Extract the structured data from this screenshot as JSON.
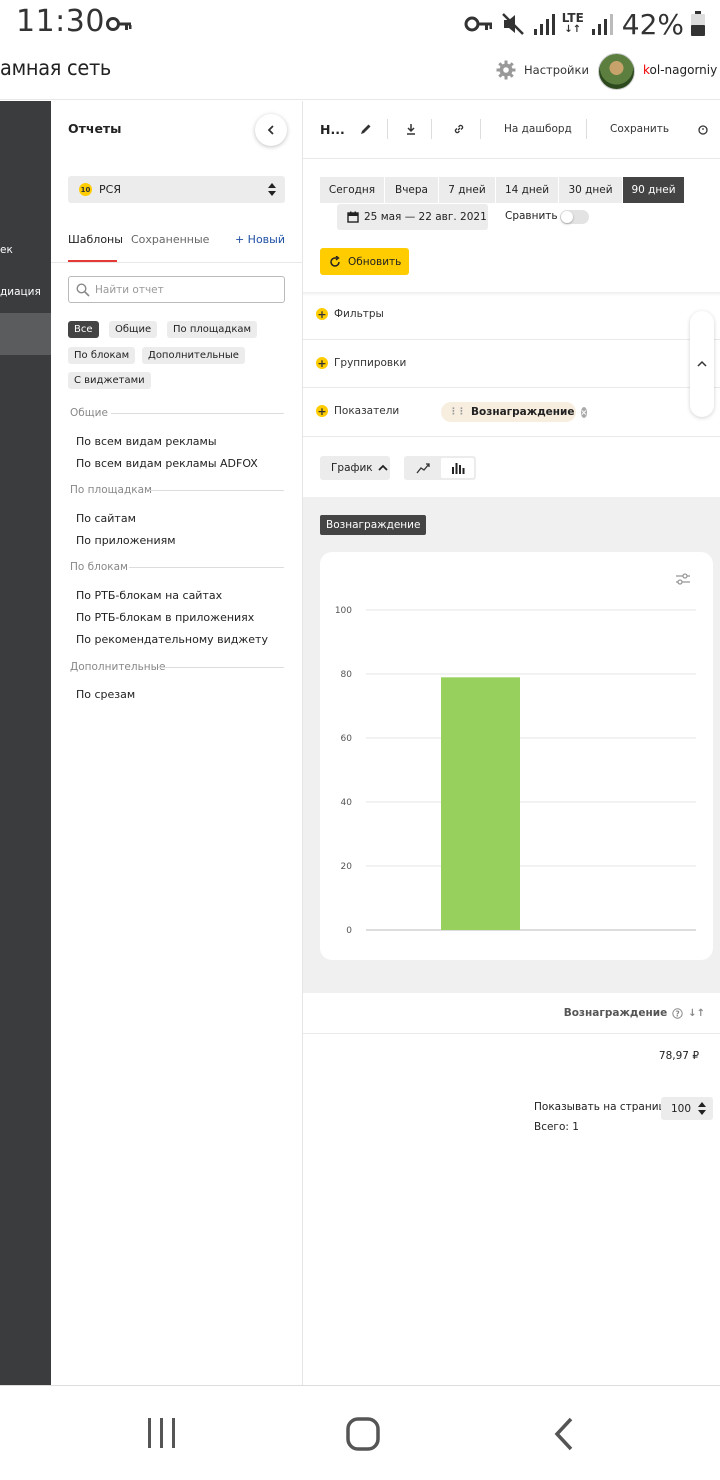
{
  "status_bar": {
    "time": "11:30",
    "network": "LTE",
    "battery": "42%"
  },
  "header": {
    "app_title": "амная сеть",
    "settings_label": "Настройки",
    "username_first": "k",
    "username_rest": "ol-nagorniy"
  },
  "left_nav": {
    "items": [
      "ек",
      "диация"
    ]
  },
  "sidebar": {
    "title": "Отчеты",
    "product_select": {
      "badge": "10",
      "value": "РСЯ"
    },
    "tabs": [
      "Шаблоны",
      "Сохраненные"
    ],
    "new_link": "+ Новый",
    "search_placeholder": "Найти отчет",
    "filter_chips": [
      "Все",
      "Общие",
      "По площадкам",
      "По блокам",
      "Дополнительные",
      "С виджетами"
    ],
    "groups": [
      {
        "title": "Общие",
        "items": [
          "По всем видам рекламы",
          "По всем видам рекламы ADFOX"
        ]
      },
      {
        "title": "По площадкам",
        "items": [
          "По сайтам",
          "По приложениям"
        ]
      },
      {
        "title": "По блокам",
        "items": [
          "По РТБ-блокам на сайтах",
          "По РТБ-блокам в приложениях",
          "По рекомендательному виджету"
        ]
      },
      {
        "title": "Дополнительные",
        "items": [
          "По срезам"
        ]
      }
    ]
  },
  "main": {
    "report_title": "Н...",
    "dashboard_link": "На дашборд",
    "save_link": "Сохранить",
    "periods": [
      "Сегодня",
      "Вчера",
      "7 дней",
      "14 дней",
      "30 дней",
      "90 дней"
    ],
    "active_period": "90 дней",
    "date_range": "25 мая — 22 авг. 2021",
    "compare_label": "Сравнить",
    "refresh_label": "Обновить",
    "filters_label": "Фильтры",
    "groupings_label": "Группировки",
    "metrics_label": "Показатели",
    "metric_chip": "Вознаграждение",
    "view_select": "График",
    "chart_metric_tag": "Вознаграждение",
    "table": {
      "column_header": "Вознаграждение",
      "value": "78,97 ₽",
      "per_page_label": "Показывать на странице",
      "per_page_value": "100",
      "total_label": "Всего: 1"
    }
  },
  "chart_data": {
    "type": "bar",
    "categories": [
      ""
    ],
    "values": [
      78.97
    ],
    "ylim": [
      0,
      100
    ],
    "yticks": [
      0,
      20,
      40,
      60,
      80,
      100
    ],
    "grid": true,
    "bar_color": "#97d05c"
  },
  "colors": {
    "accent_yellow": "#ffcc00",
    "nav_dark": "#3b3c3e",
    "link_blue": "#1f4fa3",
    "tab_underline": "#e53935"
  }
}
